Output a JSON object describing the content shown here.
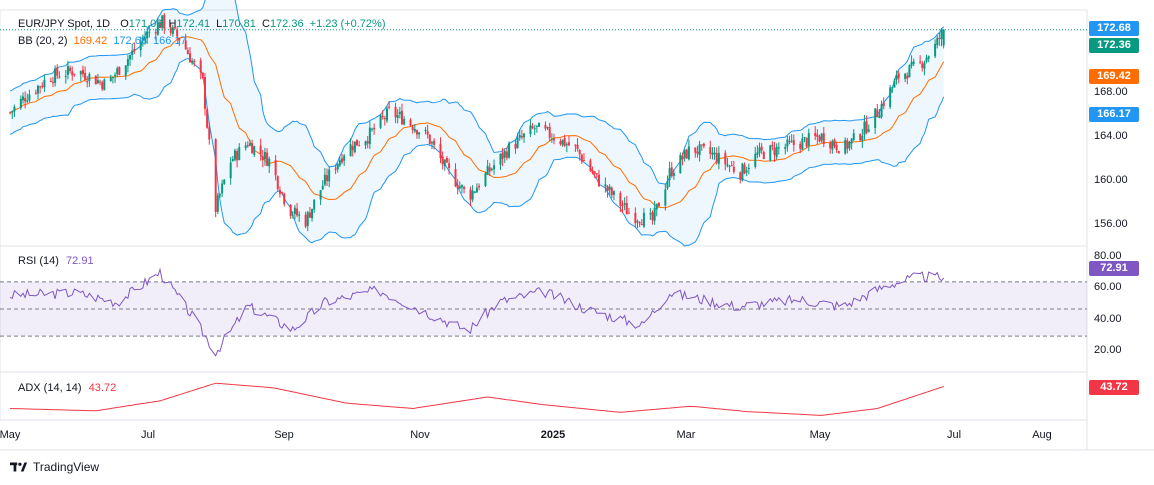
{
  "header": {
    "symbol": "EUR/JPY Spot, 1D",
    "open_label": "O",
    "open": "171.06",
    "high_label": "H",
    "high": "172.41",
    "low_label": "L",
    "low": "170.81",
    "close_label": "C",
    "close": "172.36",
    "change": "+1.23 (+0.72%)",
    "bb_label": "BB (20, 2)",
    "bb_basis": "169.42",
    "bb_upper": "172.68",
    "bb_lower": "166.17"
  },
  "rsi_pane": {
    "label": "RSI (14)",
    "value": "72.91"
  },
  "adx_pane": {
    "label": "ADX (14, 14)",
    "value": "43.72"
  },
  "price_axis": {
    "ticks": [
      "168.00",
      "164.00",
      "160.00",
      "156.00"
    ]
  },
  "rsi_axis": {
    "ticks": [
      "80.00",
      "60.00",
      "40.00",
      "20.00"
    ]
  },
  "price_tags": {
    "upper": "172.68",
    "last": "172.36",
    "basis": "169.42",
    "lower": "166.17",
    "rsi": "72.91",
    "adx": "43.72"
  },
  "time_axis": {
    "labels": [
      "May",
      "Jul",
      "Sep",
      "Nov",
      "2025",
      "Mar",
      "May",
      "Jul",
      "Aug"
    ]
  },
  "branding": {
    "name": "TradingView"
  },
  "colors": {
    "up": "#089981",
    "down": "#f23645",
    "basis": "#ff6d00",
    "band": "#2196f3",
    "band_fill": "rgba(33,150,243,0.08)",
    "rsi": "#7e57c2",
    "adx": "#f23645",
    "last": "#089981"
  },
  "chart_data": {
    "type": "candlestick",
    "title": "EUR/JPY Spot, 1D",
    "price_range": [
      154.5,
      174
    ],
    "last_close": 172.36,
    "bollinger": {
      "period": 20,
      "stddev": 2,
      "basis": 169.42,
      "upper": 172.68,
      "lower": 166.17
    },
    "price_anchors": [
      [
        "2024-05-01",
        165.5
      ],
      [
        "2024-05-08",
        166.8
      ],
      [
        "2024-05-20",
        168.5
      ],
      [
        "2024-06-01",
        169.0
      ],
      [
        "2024-06-15",
        167.8
      ],
      [
        "2024-06-25",
        170.0
      ],
      [
        "2024-07-05",
        172.2
      ],
      [
        "2024-07-11",
        173.0
      ],
      [
        "2024-07-20",
        171.5
      ],
      [
        "2024-07-30",
        168.0
      ],
      [
        "2024-08-05",
        157.5
      ],
      [
        "2024-08-12",
        161.5
      ],
      [
        "2024-08-20",
        163.0
      ],
      [
        "2024-08-30",
        161.5
      ],
      [
        "2024-09-08",
        157.5
      ],
      [
        "2024-09-16",
        156.5
      ],
      [
        "2024-09-24",
        159.5
      ],
      [
        "2024-10-05",
        162.5
      ],
      [
        "2024-10-15",
        163.5
      ],
      [
        "2024-10-25",
        165.5
      ],
      [
        "2024-11-01",
        165.0
      ],
      [
        "2024-11-12",
        163.5
      ],
      [
        "2024-11-20",
        161.0
      ],
      [
        "2024-12-01",
        158.5
      ],
      [
        "2024-12-10",
        160.5
      ],
      [
        "2024-12-20",
        162.5
      ],
      [
        "2025-01-01",
        164.2
      ],
      [
        "2025-01-10",
        163.5
      ],
      [
        "2025-01-20",
        162.5
      ],
      [
        "2025-01-30",
        160.0
      ],
      [
        "2025-02-07",
        158.5
      ],
      [
        "2025-02-15",
        157.0
      ],
      [
        "2025-02-25",
        156.5
      ],
      [
        "2025-03-05",
        160.5
      ],
      [
        "2025-03-15",
        162.5
      ],
      [
        "2025-03-25",
        162.0
      ],
      [
        "2025-04-07",
        160.5
      ],
      [
        "2025-04-15",
        162.0
      ],
      [
        "2025-04-25",
        162.5
      ],
      [
        "2025-05-05",
        163.0
      ],
      [
        "2025-05-15",
        163.5
      ],
      [
        "2025-05-25",
        162.5
      ],
      [
        "2025-06-01",
        163.5
      ],
      [
        "2025-06-10",
        165.5
      ],
      [
        "2025-06-20",
        168.5
      ],
      [
        "2025-06-30",
        169.5
      ],
      [
        "2025-07-07",
        171.0
      ],
      [
        "2025-07-11",
        172.36
      ]
    ],
    "rsi": {
      "period": 14,
      "range": [
        5,
        95
      ],
      "levels": [
        70,
        50,
        30
      ],
      "last": 72.91,
      "anchors": [
        [
          "2024-05-01",
          60
        ],
        [
          "2024-06-01",
          62
        ],
        [
          "2024-06-20",
          55
        ],
        [
          "2024-07-10",
          77
        ],
        [
          "2024-07-25",
          45
        ],
        [
          "2024-08-05",
          18
        ],
        [
          "2024-08-20",
          52
        ],
        [
          "2024-09-10",
          35
        ],
        [
          "2024-09-25",
          55
        ],
        [
          "2024-10-20",
          64
        ],
        [
          "2024-11-15",
          45
        ],
        [
          "2024-12-01",
          34
        ],
        [
          "2024-12-15",
          55
        ],
        [
          "2025-01-05",
          63
        ],
        [
          "2025-01-25",
          50
        ],
        [
          "2025-02-20",
          38
        ],
        [
          "2025-03-05",
          62
        ],
        [
          "2025-04-05",
          52
        ],
        [
          "2025-05-05",
          57
        ],
        [
          "2025-05-25",
          52
        ],
        [
          "2025-06-15",
          68
        ],
        [
          "2025-06-30",
          74
        ],
        [
          "2025-07-11",
          72.91
        ]
      ]
    },
    "adx": {
      "period": [
        14,
        14
      ],
      "range": [
        0,
        60
      ],
      "last": 43.72,
      "anchors": [
        [
          "2024-05-01",
          15
        ],
        [
          "2024-06-10",
          12
        ],
        [
          "2024-07-10",
          25
        ],
        [
          "2024-08-05",
          48
        ],
        [
          "2024-09-01",
          42
        ],
        [
          "2024-10-05",
          22
        ],
        [
          "2024-11-05",
          15
        ],
        [
          "2024-12-10",
          30
        ],
        [
          "2025-01-05",
          20
        ],
        [
          "2025-02-10",
          10
        ],
        [
          "2025-03-15",
          18
        ],
        [
          "2025-04-10",
          11
        ],
        [
          "2025-05-15",
          6
        ],
        [
          "2025-06-10",
          15
        ],
        [
          "2025-07-11",
          43.72
        ]
      ]
    },
    "x_range": [
      "2024-04-30",
      "2025-09-15"
    ]
  }
}
